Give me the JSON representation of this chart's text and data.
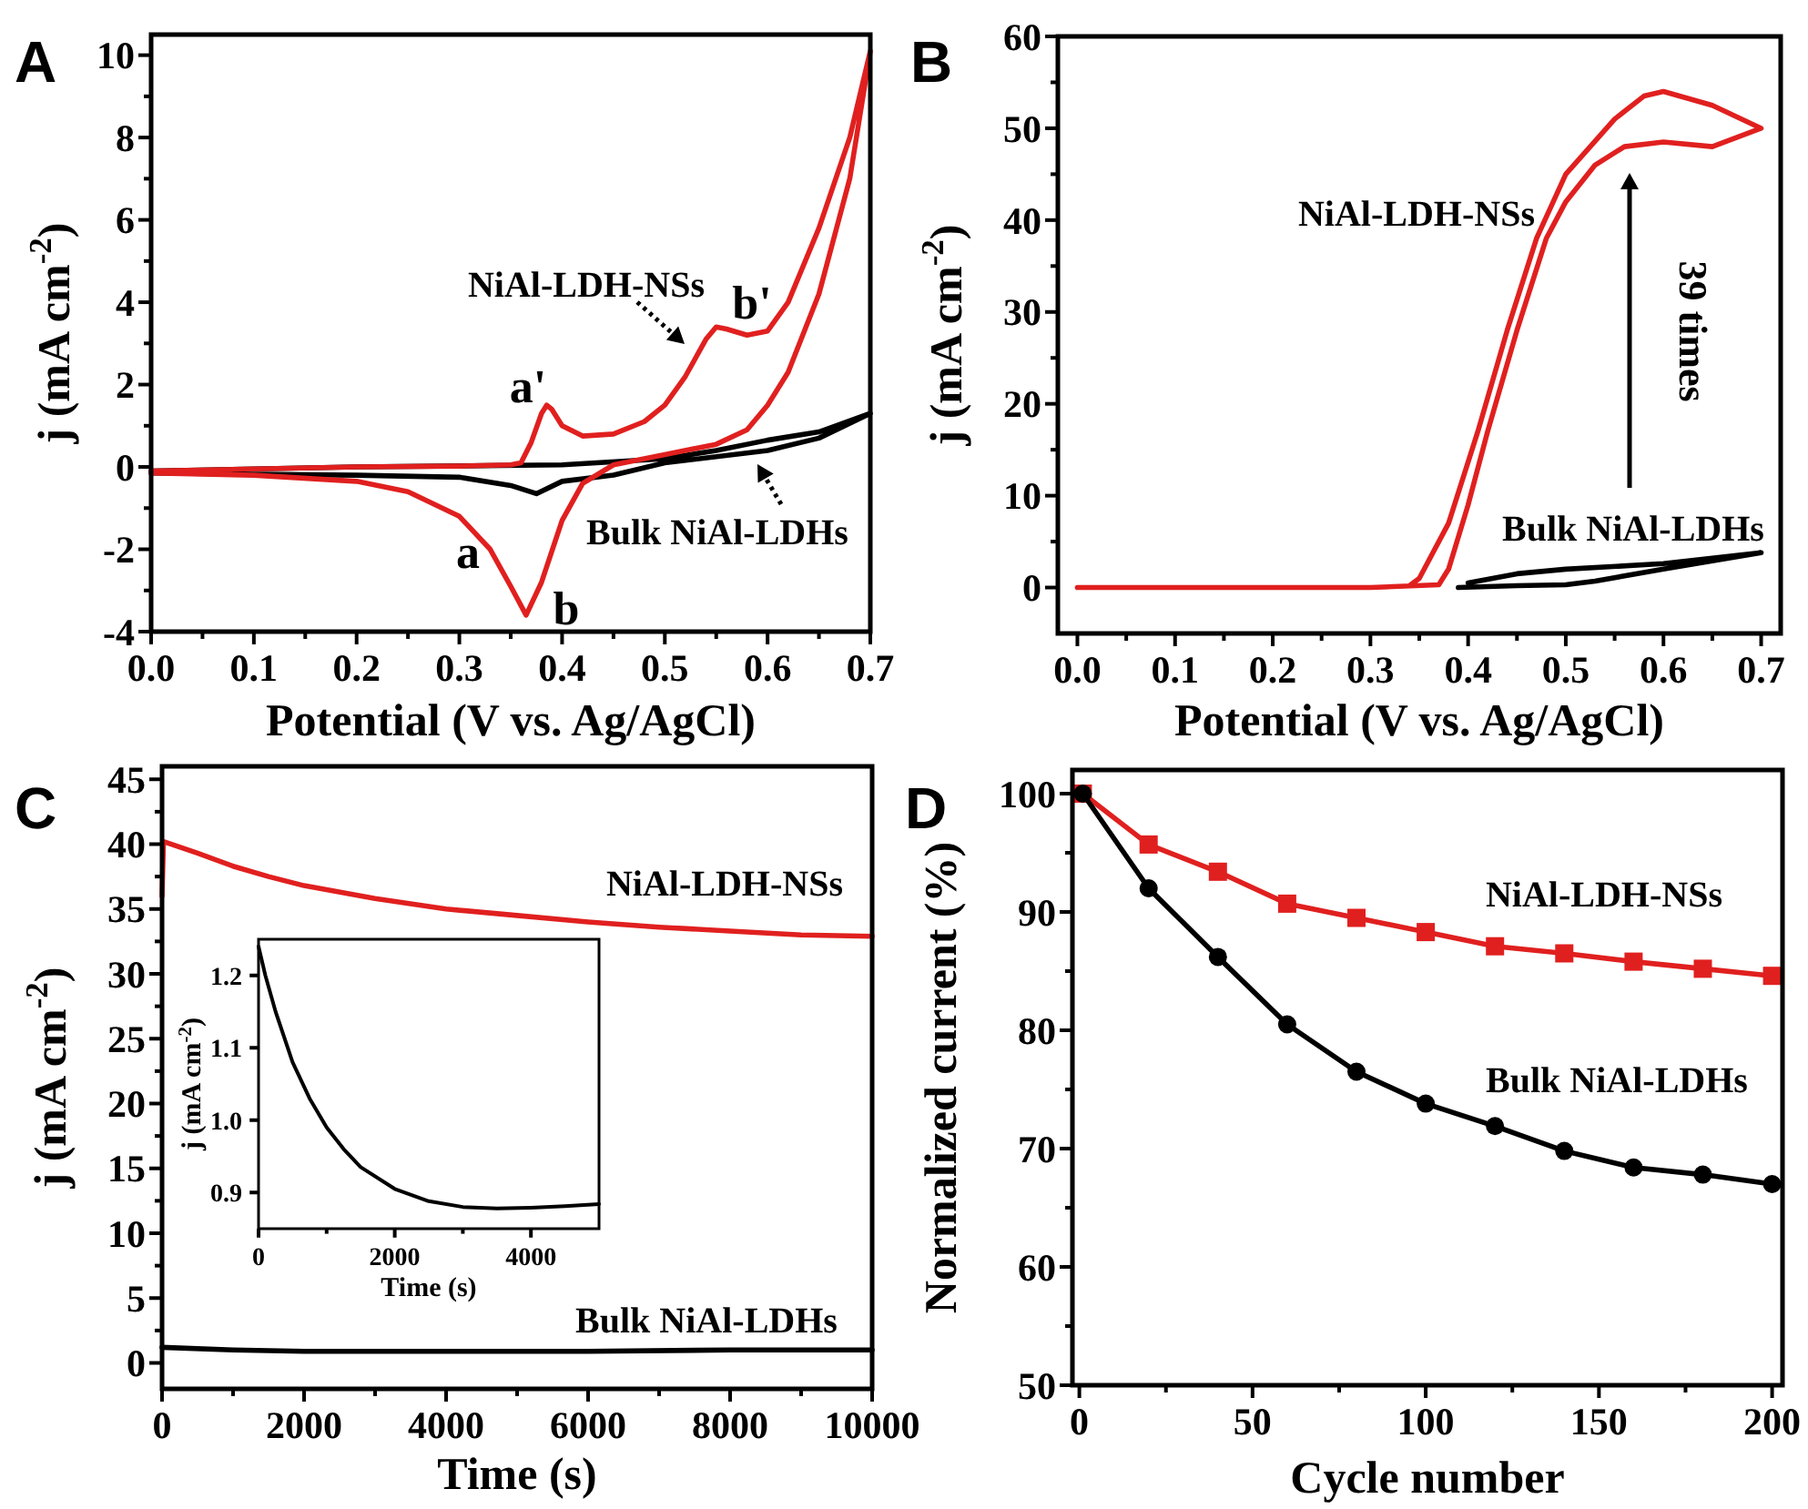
{
  "chart_data": [
    {
      "type": "line",
      "title": "A",
      "xlabel": "Potential (V vs. Ag/AgCl)",
      "ylabel": "j (mA cm$^{-2}$)",
      "xlim": [
        0,
        0.7
      ],
      "ylim": [
        -4,
        10.5
      ],
      "xticks": [
        {
          "value": 0,
          "label": "0.0"
        },
        {
          "value": 0.05,
          "label": null
        },
        {
          "value": 0.1,
          "label": "0.1"
        },
        {
          "value": 0.15,
          "label": null
        },
        {
          "value": 0.2,
          "label": "0.2"
        },
        {
          "value": 0.25,
          "label": null
        },
        {
          "value": 0.3,
          "label": "0.3"
        },
        {
          "value": 0.35,
          "label": null
        },
        {
          "value": 0.4,
          "label": "0.4"
        },
        {
          "value": 0.45,
          "label": null
        },
        {
          "value": 0.5,
          "label": "0.5"
        },
        {
          "value": 0.55,
          "label": null
        },
        {
          "value": 0.6,
          "label": "0.6"
        },
        {
          "value": 0.65,
          "label": null
        },
        {
          "value": 0.7,
          "label": "0.7"
        }
      ],
      "yticks": [
        -4,
        {
          "value": -3,
          "label": null
        },
        -2,
        {
          "value": -1,
          "label": null
        },
        0,
        {
          "value": 1,
          "label": null
        },
        2,
        {
          "value": 3,
          "label": null
        },
        4,
        {
          "value": 5,
          "label": null
        },
        6,
        {
          "value": 7,
          "label": null
        },
        8,
        {
          "value": 9,
          "label": null
        },
        10
      ],
      "series": [
        {
          "name": "Bulk NiAl-LDHs",
          "color": "#000000",
          "x": [
            0,
            0.2,
            0.4,
            0.5,
            0.55,
            0.6,
            0.65,
            0.7,
            0.65,
            0.6,
            0.5,
            0.45,
            0.4,
            0.375,
            0.35,
            0.3,
            0.2,
            0
          ],
          "values": [
            -0.1,
            0,
            0.05,
            0.2,
            0.4,
            0.65,
            0.85,
            1.3,
            0.7,
            0.4,
            0.1,
            -0.2,
            -0.35,
            -0.65,
            -0.45,
            -0.25,
            -0.2,
            -0.15
          ]
        },
        {
          "name": "NiAl-LDH-NSs",
          "color": "#e0201f",
          "x": [
            0,
            0.1,
            0.2,
            0.3,
            0.35,
            0.36,
            0.37,
            0.38,
            0.385,
            0.39,
            0.4,
            0.42,
            0.45,
            0.48,
            0.5,
            0.52,
            0.54,
            0.55,
            0.56,
            0.58,
            0.6,
            0.62,
            0.65,
            0.68,
            0.7,
            0.68,
            0.65,
            0.62,
            0.6,
            0.58,
            0.55,
            0.5,
            0.45,
            0.42,
            0.4,
            0.38,
            0.365,
            0.35,
            0.33,
            0.3,
            0.25,
            0.2,
            0.1,
            0
          ],
          "values": [
            -0.1,
            -0.05,
            0,
            0.02,
            0.05,
            0.1,
            0.6,
            1.3,
            1.5,
            1.4,
            1.0,
            0.75,
            0.8,
            1.1,
            1.5,
            2.2,
            3.1,
            3.4,
            3.35,
            3.2,
            3.3,
            4.0,
            5.8,
            8.0,
            10.1,
            7.0,
            4.2,
            2.3,
            1.5,
            0.9,
            0.55,
            0.3,
            0.05,
            -0.4,
            -1.3,
            -2.8,
            -3.6,
            -2.9,
            -2.0,
            -1.2,
            -0.6,
            -0.35,
            -0.2,
            -0.15
          ]
        }
      ],
      "annotations": [
        "b'",
        "a'",
        "a",
        "b"
      ]
    },
    {
      "type": "line",
      "title": "B",
      "xlabel": "Potential (V vs. Ag/AgCl)",
      "ylabel": "j (mA cm$^{-2}$)",
      "xlim": [
        -0.02,
        0.72
      ],
      "ylim": [
        -5,
        60
      ],
      "xticks": [
        {
          "value": 0,
          "label": "0.0"
        },
        {
          "value": 0.05,
          "label": null
        },
        {
          "value": 0.1,
          "label": "0.1"
        },
        {
          "value": 0.15,
          "label": null
        },
        {
          "value": 0.2,
          "label": "0.2"
        },
        {
          "value": 0.25,
          "label": null
        },
        {
          "value": 0.3,
          "label": "0.3"
        },
        {
          "value": 0.35,
          "label": null
        },
        {
          "value": 0.4,
          "label": "0.4"
        },
        {
          "value": 0.45,
          "label": null
        },
        {
          "value": 0.5,
          "label": "0.5"
        },
        {
          "value": 0.55,
          "label": null
        },
        {
          "value": 0.6,
          "label": "0.6"
        },
        {
          "value": 0.65,
          "label": null
        },
        {
          "value": 0.7,
          "label": "0.7"
        }
      ],
      "yticks": [
        0,
        {
          "value": 5,
          "label": null
        },
        10,
        {
          "value": 15,
          "label": null
        },
        20,
        {
          "value": 25,
          "label": null
        },
        30,
        {
          "value": 35,
          "label": null
        },
        40,
        {
          "value": 45,
          "label": null
        },
        50,
        {
          "value": 55,
          "label": null
        },
        60
      ],
      "series": [
        {
          "name": "NiAl-LDH-NSs",
          "color": "#e0201f",
          "x": [
            0,
            0.3,
            0.37,
            0.38,
            0.4,
            0.42,
            0.45,
            0.48,
            0.5,
            0.53,
            0.56,
            0.6,
            0.65,
            0.7,
            0.65,
            0.6,
            0.58,
            0.55,
            0.5,
            0.47,
            0.44,
            0.41,
            0.38,
            0.35,
            0.34
          ],
          "values": [
            0,
            0,
            0.3,
            2,
            9,
            17,
            28,
            38,
            42,
            46,
            48,
            48.5,
            48,
            50,
            52.5,
            54,
            53.5,
            51,
            45,
            38,
            28,
            17,
            7,
            1,
            0.2
          ]
        },
        {
          "name": "Bulk NiAl-LDHs",
          "color": "#000000",
          "x": [
            0.39,
            0.45,
            0.5,
            0.53,
            0.6,
            0.7,
            0.6,
            0.5,
            0.45,
            0.4
          ],
          "values": [
            0,
            0.2,
            0.3,
            0.7,
            2.0,
            3.8,
            2.6,
            2.0,
            1.5,
            0.5
          ]
        }
      ],
      "annotations": [
        "39 times"
      ]
    },
    {
      "type": "line",
      "title": "C",
      "xlabel": "Time (s)",
      "ylabel": "j (mA cm$^{-2}$)",
      "xlim": [
        0,
        10000
      ],
      "ylim": [
        -2,
        46
      ],
      "xticks": [
        0,
        {
          "value": 1000,
          "label": null
        },
        2000,
        {
          "value": 3000,
          "label": null
        },
        4000,
        {
          "value": 5000,
          "label": null
        },
        6000,
        {
          "value": 7000,
          "label": null
        },
        8000,
        {
          "value": 9000,
          "label": null
        },
        10000
      ],
      "yticks": [
        0,
        {
          "value": 2.5,
          "label": null
        },
        5,
        {
          "value": 7.5,
          "label": null
        },
        10,
        {
          "value": 12.5,
          "label": null
        },
        15,
        {
          "value": 17.5,
          "label": null
        },
        20,
        {
          "value": 22.5,
          "label": null
        },
        25,
        {
          "value": 27.5,
          "label": null
        },
        30,
        {
          "value": 32.5,
          "label": null
        },
        35,
        {
          "value": 37.5,
          "label": null
        },
        40,
        {
          "value": 42.5,
          "label": null
        },
        45
      ],
      "series": [
        {
          "name": "NiAl-LDH-NSs",
          "color": "#e0201f",
          "x": [
            0,
            20,
            500,
            1000,
            1500,
            2000,
            3000,
            4000,
            5000,
            6000,
            7000,
            8000,
            9000,
            10000
          ],
          "values": [
            36,
            40.2,
            39.3,
            38.3,
            37.5,
            36.8,
            35.8,
            35.0,
            34.5,
            34.0,
            33.6,
            33.3,
            33.0,
            32.9
          ]
        },
        {
          "name": "Bulk NiAl-LDHs",
          "color": "#000000",
          "x": [
            0,
            1000,
            2000,
            4000,
            6000,
            8000,
            10000
          ],
          "values": [
            1.2,
            1.0,
            0.9,
            0.9,
            0.9,
            1.0,
            1.0
          ]
        }
      ]
    },
    {
      "type": "line",
      "xlabel": "Time (s)",
      "ylabel": "j (mA cm$^{-2}$)",
      "xlim": [
        0,
        5000
      ],
      "ylim": [
        0.85,
        1.25
      ],
      "xticks": [
        0,
        {
          "value": 1000,
          "label": null
        },
        2000,
        {
          "value": 3000,
          "label": null
        },
        4000
      ],
      "yticks": [
        0.9,
        {
          "value": 1,
          "label": "1.0"
        },
        1.1,
        1.2
      ],
      "series": [
        {
          "color": "#000000",
          "x": [
            0,
            100,
            250,
            500,
            750,
            1000,
            1250,
            1500,
            2000,
            2500,
            3000,
            3500,
            4000,
            4500,
            5000
          ],
          "values": [
            1.24,
            1.2,
            1.15,
            1.08,
            1.03,
            0.99,
            0.96,
            0.935,
            0.905,
            0.888,
            0.88,
            0.878,
            0.879,
            0.881,
            0.884
          ]
        }
      ]
    },
    {
      "type": "line",
      "title": "D",
      "xlabel": "Cycle number",
      "ylabel": "Normalized current (%)",
      "xlim": [
        -2,
        203
      ],
      "ylim": [
        50,
        102
      ],
      "xticks": [
        0,
        {
          "value": 25,
          "label": null
        },
        50,
        {
          "value": 75,
          "label": null
        },
        100,
        {
          "value": 125,
          "label": null
        },
        150,
        {
          "value": 175,
          "label": null
        },
        200
      ],
      "yticks": [
        50,
        {
          "value": 55,
          "label": null
        },
        60,
        {
          "value": 65,
          "label": null
        },
        70,
        {
          "value": 75,
          "label": null
        },
        80,
        {
          "value": 85,
          "label": null
        },
        90,
        {
          "value": 95,
          "label": null
        },
        100
      ],
      "series": [
        {
          "name": "NiAl-LDH-NSs",
          "color": "#e0201f",
          "marker": "square",
          "x": [
            1,
            20,
            40,
            60,
            80,
            100,
            120,
            140,
            160,
            180,
            200
          ],
          "values": [
            100,
            95.7,
            93.4,
            90.7,
            89.5,
            88.3,
            87.1,
            86.5,
            85.8,
            85.2,
            84.6
          ]
        },
        {
          "name": "Bulk NiAl-LDHs",
          "color": "#000000",
          "marker": "circle",
          "x": [
            1,
            20,
            40,
            60,
            80,
            100,
            120,
            140,
            160,
            180,
            200
          ],
          "values": [
            100,
            92.0,
            86.2,
            80.5,
            76.5,
            73.8,
            71.9,
            69.8,
            68.4,
            67.8,
            67.0
          ]
        }
      ]
    }
  ]
}
